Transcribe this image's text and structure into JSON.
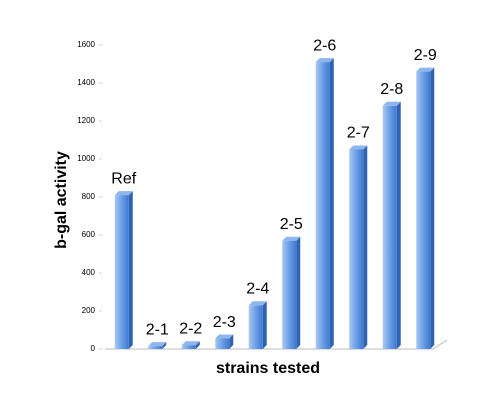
{
  "chart_data": {
    "type": "bar",
    "x_label": "strains tested",
    "y_label": "b-gal activity",
    "categories": [
      "Ref",
      "2-1",
      "2-2",
      "2-3",
      "2-4",
      "2-5",
      "2-6",
      "2-7",
      "2-8",
      "2-9"
    ],
    "values": [
      810,
      15,
      20,
      55,
      230,
      570,
      1510,
      1050,
      1280,
      1460
    ],
    "color": "#4f86d6",
    "ylim": [
      0,
      1600
    ],
    "yticks": [
      0,
      200,
      400,
      600,
      800,
      1000,
      1200,
      1400,
      1600
    ],
    "grid": false
  }
}
